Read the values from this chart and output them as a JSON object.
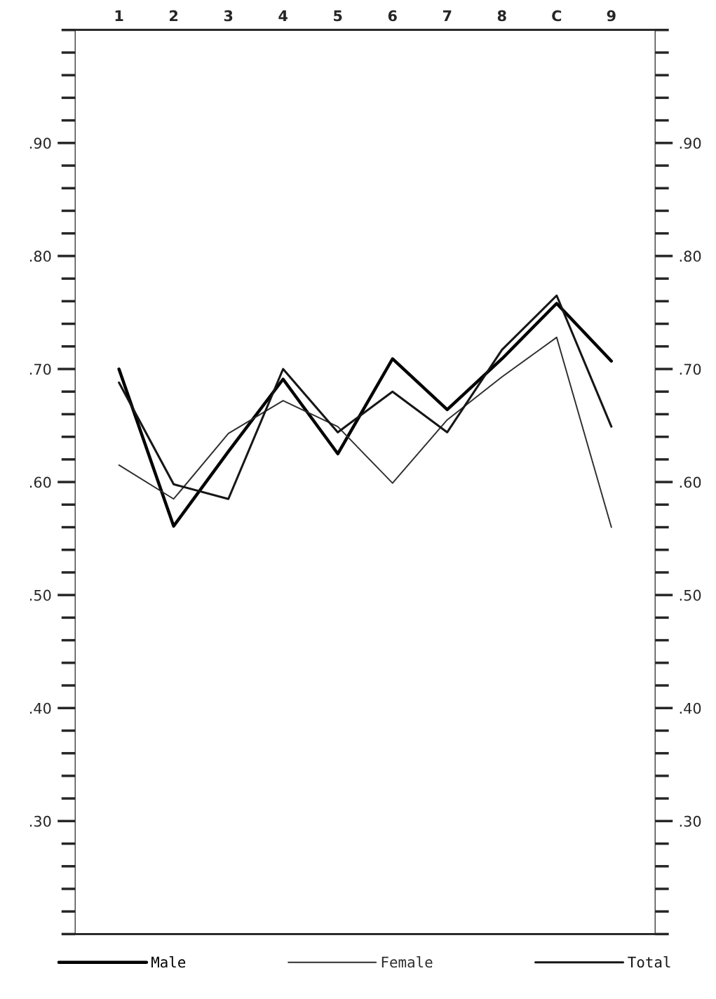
{
  "chart_data": {
    "type": "line",
    "categories": [
      "1",
      "2",
      "3",
      "4",
      "5",
      "6",
      "7",
      "8",
      "C",
      "9"
    ],
    "series": [
      {
        "name": "Male",
        "color": "#000000",
        "values": [
          0.7,
          0.561,
          0.627,
          0.691,
          0.625,
          0.709,
          0.664,
          0.709,
          0.758,
          0.707
        ]
      },
      {
        "name": "Female",
        "color": "#2e2e2e",
        "values": [
          0.615,
          0.585,
          0.643,
          0.672,
          0.649,
          0.599,
          0.655,
          0.693,
          0.728,
          0.56
        ]
      },
      {
        "name": "Total",
        "color": "#161616",
        "values": [
          0.688,
          0.598,
          0.585,
          0.7,
          0.644,
          0.68,
          0.644,
          0.717,
          0.765,
          0.649
        ]
      }
    ],
    "ylim": [
      0.2,
      1.0
    ],
    "yticks": [
      {
        "value": 0.3,
        "label": ".30"
      },
      {
        "value": 0.4,
        "label": ".40"
      },
      {
        "value": 0.5,
        "label": ".50"
      },
      {
        "value": 0.6,
        "label": ".60"
      },
      {
        "value": 0.7,
        "label": ".70"
      },
      {
        "value": 0.8,
        "label": ".80"
      },
      {
        "value": 0.9,
        "label": ".90"
      }
    ],
    "y2lim": [
      0.2,
      1.0
    ],
    "y2ticks": [
      {
        "value": 0.3,
        "label": ".30"
      },
      {
        "value": 0.4,
        "label": ".40"
      },
      {
        "value": 0.5,
        "label": ".50"
      },
      {
        "value": 0.6,
        "label": ".60"
      },
      {
        "value": 0.7,
        "label": ".70"
      },
      {
        "value": 0.8,
        "label": ".80"
      },
      {
        "value": 0.9,
        "label": ".90"
      }
    ],
    "grid": false,
    "legend": "bottom",
    "marker": "none",
    "line_style": "solid"
  }
}
